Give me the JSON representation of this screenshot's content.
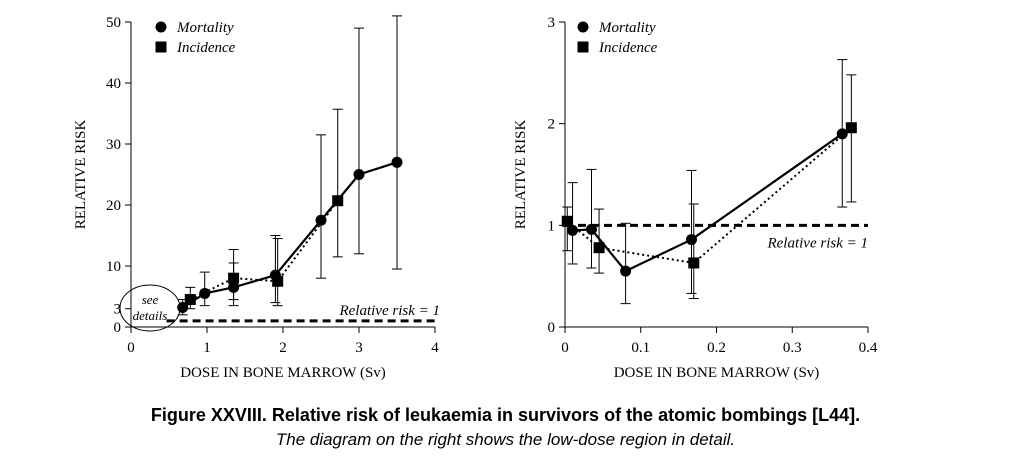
{
  "caption": {
    "title": "Figure XXVIII.   Relative risk of leukaemia in survivors of the atomic bombings [L44].",
    "subtitle": "The diagram on the right shows the low-dose region in detail."
  },
  "chart_data": [
    {
      "type": "line",
      "xlabel": "DOSE IN BONE MARROW  (Sv)",
      "ylabel": "RELATIVE RISK",
      "xlim": [
        0,
        4
      ],
      "ylim": [
        0,
        50
      ],
      "xticks": [
        0,
        1,
        2,
        3,
        4
      ],
      "yticks": [
        0,
        3,
        10,
        20,
        30,
        40,
        50
      ],
      "reference_line": {
        "y": 1,
        "label": "Relative risk = 1",
        "x_start": 0.6
      },
      "annotation": "see details",
      "series": [
        {
          "name": "Mortality",
          "marker": "circle",
          "style": "solid",
          "x": [
            0.68,
            0.97,
            1.35,
            1.9,
            2.5,
            3.0,
            3.5
          ],
          "y": [
            3.2,
            5.5,
            6.5,
            8.5,
            17.5,
            25.0,
            27.0
          ],
          "ci_low": [
            2.0,
            3.5,
            3.5,
            4.0,
            8.0,
            12.0,
            9.5
          ],
          "ci_high": [
            4.5,
            9.0,
            10.5,
            15.0,
            31.5,
            49.0,
            51.0
          ]
        },
        {
          "name": "Incidence",
          "marker": "square",
          "style": "dotted",
          "x": [
            0.78,
            1.35,
            1.93,
            2.72
          ],
          "y": [
            4.5,
            8.0,
            7.5,
            20.7
          ],
          "ci_low": [
            3.0,
            4.5,
            3.5,
            11.5
          ],
          "ci_high": [
            6.5,
            12.7,
            14.5,
            35.7
          ]
        }
      ]
    },
    {
      "type": "line",
      "xlabel": "DOSE IN BONE MARROW  (Sv)",
      "ylabel": "RELATIVE RISK",
      "xlim": [
        0,
        0.4
      ],
      "ylim": [
        0,
        3
      ],
      "xticks": [
        0,
        0.1,
        0.2,
        0.3,
        0.4
      ],
      "yticks": [
        0,
        1,
        2,
        3
      ],
      "reference_line": {
        "y": 1,
        "label": "Relative risk = 1",
        "x_start": 0
      },
      "series": [
        {
          "name": "Mortality",
          "marker": "circle",
          "style": "solid",
          "x": [
            0.01,
            0.035,
            0.08,
            0.167,
            0.366
          ],
          "y": [
            0.95,
            0.96,
            0.55,
            0.86,
            1.9
          ],
          "ci_low": [
            0.62,
            0.58,
            0.23,
            0.33,
            1.18
          ],
          "ci_high": [
            1.42,
            1.55,
            1.02,
            1.54,
            2.63
          ]
        },
        {
          "name": "Incidence",
          "marker": "square",
          "style": "dotted",
          "x": [
            0.003,
            0.045,
            0.17,
            0.378
          ],
          "y": [
            1.04,
            0.78,
            0.63,
            1.96
          ],
          "ci_low": [
            0.75,
            0.53,
            0.28,
            1.23
          ],
          "ci_high": [
            1.18,
            1.16,
            1.21,
            2.48
          ]
        }
      ]
    }
  ]
}
